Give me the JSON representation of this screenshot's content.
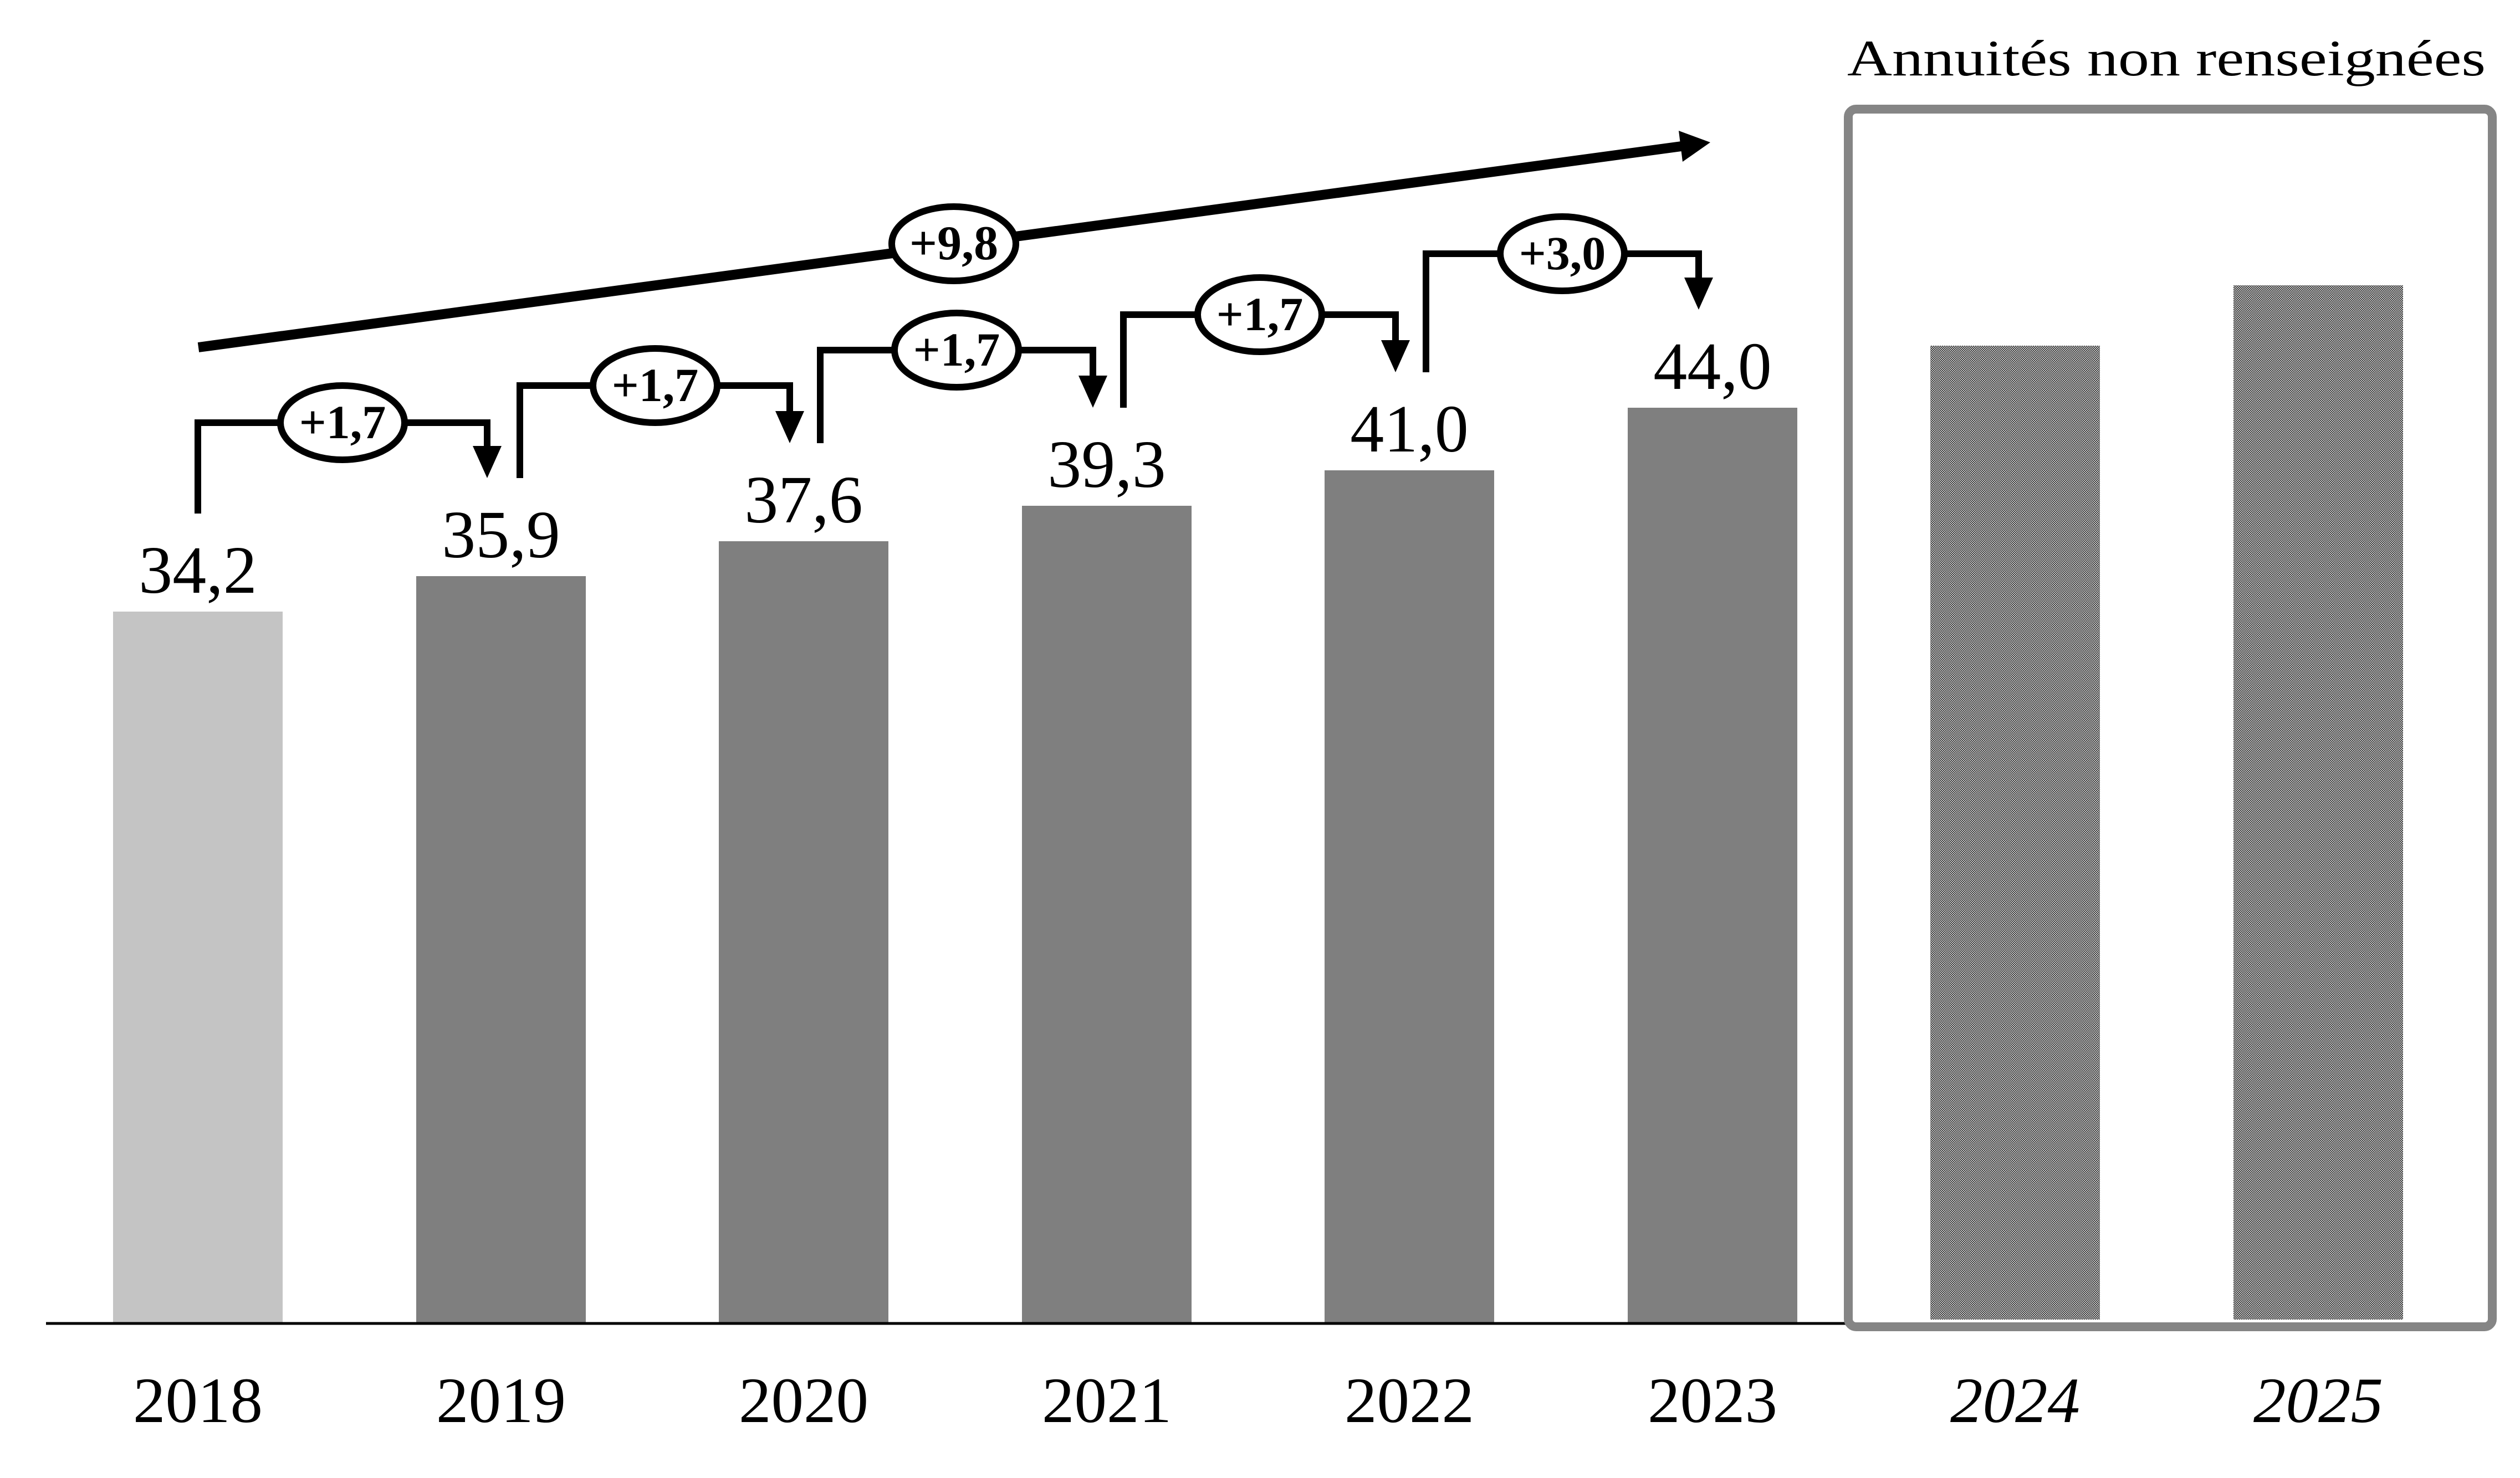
{
  "chart_data": {
    "type": "bar",
    "categories": [
      "2018",
      "2019",
      "2020",
      "2021",
      "2022",
      "2023",
      "2024",
      "2025"
    ],
    "values": [
      34.2,
      35.9,
      37.6,
      39.3,
      41.0,
      44.0,
      null,
      null
    ],
    "bar_labels": [
      "34,2",
      "35,9",
      "37,6",
      "39,3",
      "41,0",
      "44,0",
      null,
      null
    ],
    "estimated_values_unlabeled": {
      "2024": 47.0,
      "2025": 49.9
    },
    "deltas": [
      {
        "from": "2018",
        "to": "2019",
        "label": "+1,7",
        "value": 1.7
      },
      {
        "from": "2019",
        "to": "2020",
        "label": "+1,7",
        "value": 1.7
      },
      {
        "from": "2020",
        "to": "2021",
        "label": "+1,7",
        "value": 1.7
      },
      {
        "from": "2021",
        "to": "2022",
        "label": "+1,7",
        "value": 1.7
      },
      {
        "from": "2022",
        "to": "2023",
        "label": "+3,0",
        "value": 3.0
      }
    ],
    "total_delta": {
      "from": "2018",
      "to": "2023",
      "label": "+9,8",
      "value": 9.8
    },
    "annotation_box": {
      "label": "Annuités non renseignées",
      "years": [
        "2024",
        "2025"
      ]
    },
    "axis": {
      "y_axis_visible": false,
      "baseline_visible": true,
      "x_labels_italic": [
        "2024",
        "2025"
      ]
    },
    "legend": {
      "visible": false
    },
    "decimal_separator": ",",
    "colors": {
      "bar_default": "#7f7f7f",
      "bar_2018": "#c4c4c4",
      "bar_pattern_dark": "#3f3f3f",
      "bar_pattern_light": "#c1c1c1",
      "box_border": "#858585",
      "ink": "#000000",
      "background": "#ffffff"
    }
  }
}
